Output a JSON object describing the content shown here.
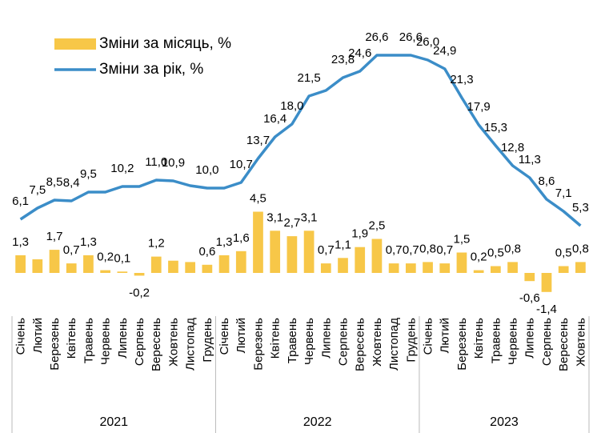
{
  "chart_data": {
    "type": "bar-line",
    "categories": [
      "Січень",
      "Лютий",
      "Березень",
      "Квітень",
      "Травень",
      "Червень",
      "Липень",
      "Серпень",
      "Вересень",
      "Жовтень",
      "Листопад",
      "Грудень",
      "Січень",
      "Лютий",
      "Березень",
      "Квітень",
      "Травень",
      "Червень",
      "Липень",
      "Серпень",
      "Вересень",
      "Жовтень",
      "Листопад",
      "Грудень",
      "Січень",
      "Лютий",
      "Березень",
      "Квітень",
      "Травень",
      "Червень",
      "Липень",
      "Серпень",
      "Вересень",
      "Жовтень"
    ],
    "groups": [
      {
        "label": "2021",
        "count": 12
      },
      {
        "label": "2022",
        "count": 12
      },
      {
        "label": "2023",
        "count": 10
      }
    ],
    "series": [
      {
        "name": "Зміни за місяць, %",
        "color": "#f7c748",
        "type": "bar",
        "axis": "y2",
        "values": [
          1.3,
          1.0,
          1.7,
          0.7,
          1.3,
          0.2,
          0.1,
          -0.2,
          1.2,
          0.9,
          0.8,
          0.6,
          1.3,
          1.6,
          4.5,
          3.1,
          2.7,
          3.1,
          0.7,
          1.1,
          1.9,
          2.5,
          0.7,
          0.7,
          0.8,
          0.7,
          1.5,
          0.2,
          0.5,
          0.8,
          -0.6,
          -1.4,
          0.5,
          0.8
        ],
        "value_labels": [
          "1,3",
          null,
          "1,7",
          "0,7",
          "1,3",
          "0,2",
          "0,1",
          "-0,2",
          "1,2",
          null,
          null,
          "0,6",
          "1,3",
          "1,6",
          "4,5",
          "3,1",
          "2,7",
          "3,1",
          "0,7",
          "1,1",
          "1,9",
          "2,5",
          "0,7",
          "0,7",
          "0,8",
          "0,7",
          "1,5",
          "0,2",
          "0,5",
          "0,8",
          "-0,6",
          "-1,4",
          "0,5",
          "0,8"
        ]
      },
      {
        "name": "Зміни за рік, %",
        "color": "#3b8dc8",
        "type": "line",
        "values": [
          6.1,
          7.5,
          8.5,
          8.4,
          9.5,
          9.5,
          10.2,
          10.2,
          11.0,
          10.9,
          10.3,
          10.0,
          10.0,
          10.7,
          13.7,
          16.4,
          18.0,
          21.5,
          22.2,
          23.8,
          24.6,
          26.6,
          26.6,
          26.6,
          26.0,
          24.9,
          21.3,
          17.9,
          15.3,
          12.8,
          11.3,
          8.6,
          7.1,
          5.3
        ],
        "value_labels": [
          "6,1",
          "7,5",
          "8,5",
          "8,4",
          "9,5",
          null,
          "10,2",
          null,
          "11,0",
          "10,9",
          null,
          "10,0",
          null,
          "10,7",
          "13,7",
          "16,4",
          "18,0",
          "21,5",
          null,
          "23,8",
          "24,6",
          "26,6",
          null,
          "26,6",
          "26,0",
          "24,9",
          "21,3",
          "17,9",
          "15,3",
          "12,8",
          "11,3",
          "8,6",
          "7,1",
          "5,3"
        ]
      }
    ],
    "ylim": [
      -4,
      30
    ],
    "y2lim": [
      -2,
      18
    ],
    "legend": "upper left"
  }
}
